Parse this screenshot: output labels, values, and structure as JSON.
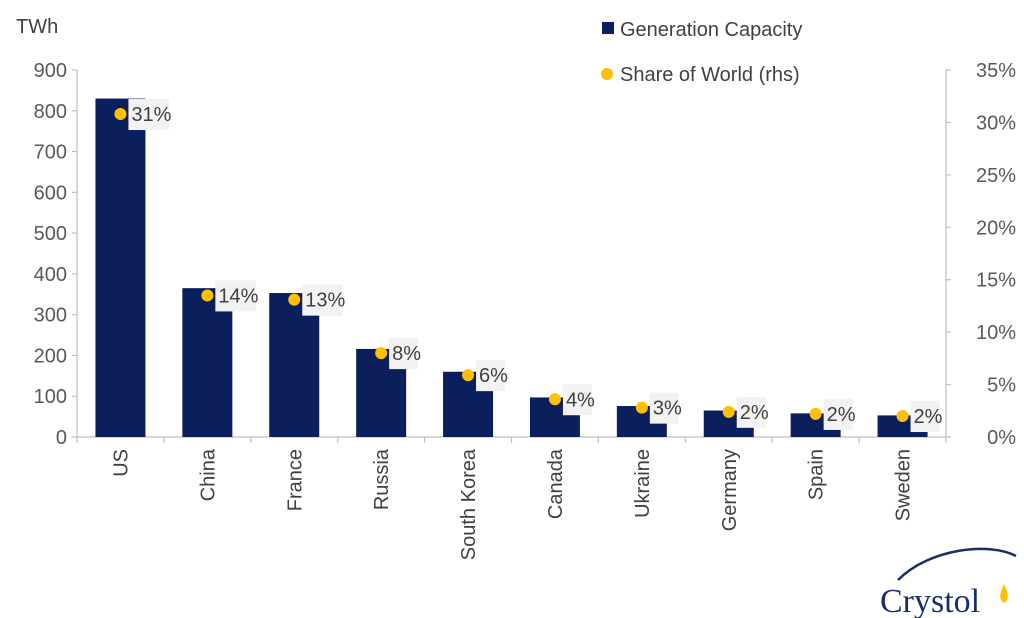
{
  "chart_data": {
    "type": "bar",
    "categories": [
      "US",
      "China",
      "France",
      "Russia",
      "South Korea",
      "Canada",
      "Ukraine",
      "Germany",
      "Spain",
      "Sweden"
    ],
    "series": [
      {
        "name": "Generation Capacity",
        "type": "bar",
        "axis": "left",
        "color": "#0b1f5c",
        "values": [
          830,
          365,
          353,
          216,
          160,
          97,
          76,
          65,
          58,
          53
        ]
      },
      {
        "name": "Share of World (rhs)",
        "type": "scatter",
        "axis": "right",
        "color": "#ffc000",
        "values": [
          31,
          14,
          13,
          8,
          6,
          4,
          3,
          2,
          2,
          2
        ],
        "plot_values": [
          30.8,
          13.5,
          13.1,
          8.0,
          5.9,
          3.6,
          2.8,
          2.4,
          2.2,
          2.0
        ],
        "labels": [
          "31%",
          "14%",
          "13%",
          "8%",
          "6%",
          "4%",
          "3%",
          "2%",
          "2%",
          "2%"
        ]
      }
    ],
    "y_left": {
      "unit": "TWh",
      "ylim": [
        0,
        900
      ],
      "ticks": [
        "0",
        "100",
        "200",
        "300",
        "400",
        "500",
        "600",
        "700",
        "800",
        "900"
      ]
    },
    "y_right": {
      "ylim": [
        0,
        35
      ],
      "ticks": [
        "0%",
        "5%",
        "10%",
        "15%",
        "20%",
        "25%",
        "30%",
        "35%"
      ]
    },
    "grid": false,
    "legend_position": "top-right"
  },
  "logo": {
    "text": "Crystol"
  }
}
